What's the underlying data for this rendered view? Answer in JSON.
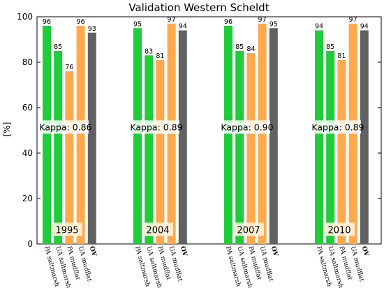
{
  "chart_data": {
    "type": "bar",
    "title": "Validation Western Scheldt",
    "ylabel": "[%]",
    "ylim": [
      0,
      100
    ],
    "yticks": [
      "0",
      "20",
      "40",
      "60",
      "80",
      "100"
    ],
    "groups": [
      "1995",
      "2004",
      "2007",
      "2010"
    ],
    "categories": [
      "PA saltmarsh",
      "UA saltmarsh",
      "PA mudflat",
      "UA mudflat",
      "OV"
    ],
    "category_colors": [
      "#1fcc3a",
      "#1fcc3a",
      "#ffa94d",
      "#ffa94d",
      "#616161"
    ],
    "values": [
      [
        96,
        85,
        76,
        96,
        93
      ],
      [
        95,
        83,
        81,
        97,
        94
      ],
      [
        96,
        85,
        84,
        97,
        95
      ],
      [
        94,
        85,
        81,
        97,
        94
      ]
    ],
    "kappa": [
      "Kappa: 0.86",
      "Kappa: 0.89",
      "Kappa: 0.90",
      "Kappa: 0.89"
    ],
    "grid": false
  }
}
